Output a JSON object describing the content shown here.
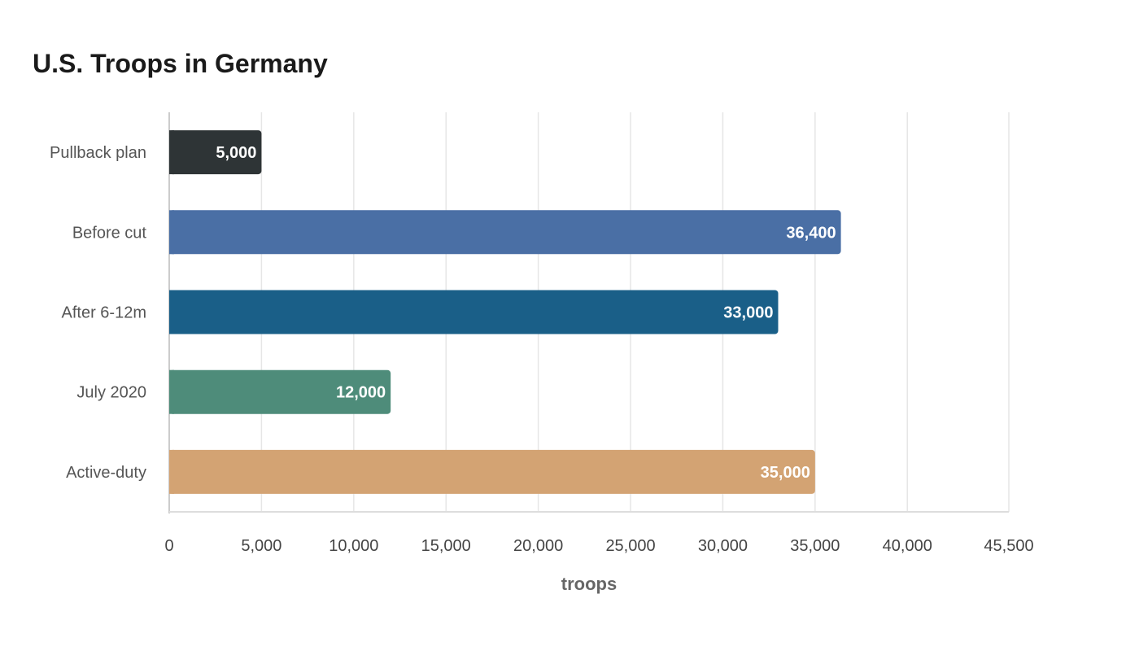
{
  "chart_data": {
    "type": "bar",
    "orientation": "horizontal",
    "title": "U.S. Troops in Germany",
    "xlabel": "troops",
    "ylabel": "",
    "categories": [
      "Pullback plan",
      "Before cut",
      "After 6-12m",
      "July 2020",
      "Active-duty"
    ],
    "values": [
      5000,
      36400,
      33000,
      12000,
      35000
    ],
    "colors": [
      "#2e3436",
      "#4a6fa5",
      "#1a5f88",
      "#4e8c7a",
      "#d3a373"
    ],
    "data_labels": [
      "5,000",
      "36,400",
      "33,000",
      "12,000",
      "35,000"
    ],
    "xlim": [
      0,
      45500
    ],
    "ticks": [
      0,
      5000,
      10000,
      15000,
      20000,
      25000,
      30000,
      35000,
      40000,
      45500
    ],
    "tick_labels": [
      "0",
      "5,000",
      "10,000",
      "15,000",
      "20,000",
      "25,000",
      "30,000",
      "35,000",
      "40,000",
      "45,500"
    ],
    "grid": true,
    "legend": "none"
  }
}
